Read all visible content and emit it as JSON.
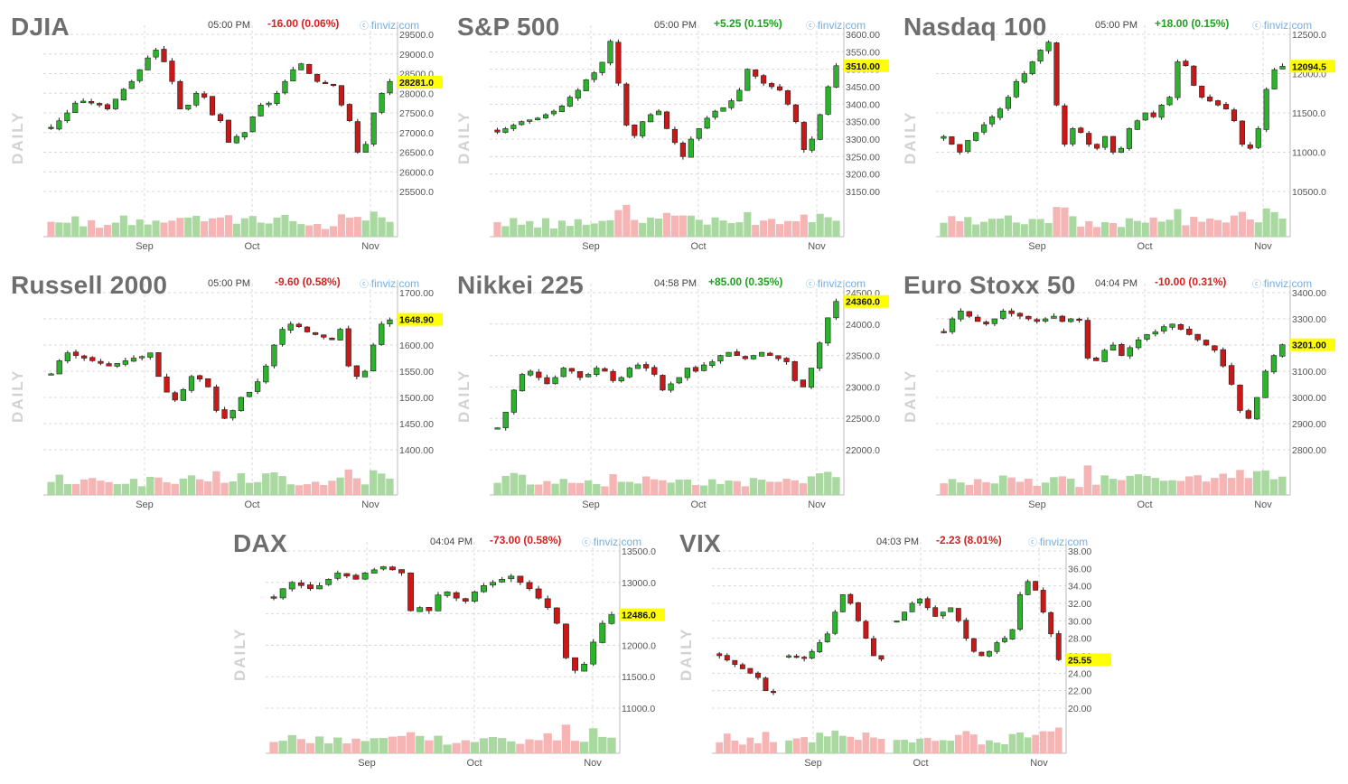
{
  "palette": {
    "up": "#2bb32b",
    "down": "#c81818",
    "up_vol": "#a9d9a0",
    "down_vol": "#f5b5b5",
    "last_price_bg": "#ffff00",
    "watermark": "#78aee0"
  },
  "charts": [
    {
      "title": "DJIA",
      "time": "05:00 PM",
      "change": "-16.00 (0.06%)",
      "direction": "down",
      "watermark": "finviz.com",
      "side_label": "DAILY",
      "last_label": "28281.0",
      "y_ticks": [
        "29500.0",
        "29000.0",
        "28500.0",
        "28000.0",
        "27500.0",
        "27000.0",
        "26500.0",
        "26000.0",
        "25500.0"
      ],
      "x_ticks": [
        "Sep",
        "Oct",
        "Nov"
      ]
    },
    {
      "title": "S&P 500",
      "time": "05:00 PM",
      "change": "+5.25 (0.15%)",
      "direction": "up",
      "watermark": "finviz.com",
      "side_label": "DAILY",
      "last_label": "3510.00",
      "y_ticks": [
        "3600.00",
        "3550.00",
        "3500.00",
        "3450.00",
        "3400.00",
        "3350.00",
        "3300.00",
        "3250.00",
        "3200.00",
        "3150.00"
      ],
      "x_ticks": [
        "Sep",
        "Oct",
        "Nov"
      ]
    },
    {
      "title": "Nasdaq 100",
      "time": "05:00 PM",
      "change": "+18.00 (0.15%)",
      "direction": "up",
      "watermark": "finviz.com",
      "side_label": "DAILY",
      "last_label": "12094.5",
      "y_ticks": [
        "12500.0",
        "12000.0",
        "11500.0",
        "11000.0",
        "10500.0"
      ],
      "x_ticks": [
        "Sep",
        "Oct",
        "Nov"
      ]
    },
    {
      "title": "Russell 2000",
      "time": "05:00 PM",
      "change": "-9.60 (0.58%)",
      "direction": "down",
      "watermark": "finviz.com",
      "side_label": "DAILY",
      "last_label": "1648.90",
      "y_ticks": [
        "1700.00",
        "1650.00",
        "1600.00",
        "1550.00",
        "1500.00",
        "1450.00",
        "1400.00"
      ],
      "x_ticks": [
        "Sep",
        "Oct",
        "Nov"
      ]
    },
    {
      "title": "Nikkei 225",
      "time": "04:58 PM",
      "change": "+85.00 (0.35%)",
      "direction": "up",
      "watermark": "finviz.com",
      "side_label": "DAILY",
      "last_label": "24360.0",
      "y_ticks": [
        "24500.0",
        "24000.0",
        "23500.0",
        "23000.0",
        "22500.0",
        "22000.0"
      ],
      "x_ticks": [
        "Sep",
        "Oct",
        "Nov"
      ]
    },
    {
      "title": "Euro Stoxx 50",
      "time": "04:04 PM",
      "change": "-10.00 (0.31%)",
      "direction": "down",
      "watermark": "finviz.com",
      "side_label": "DAILY",
      "last_label": "3201.00",
      "y_ticks": [
        "3400.00",
        "3300.00",
        "3200.00",
        "3100.00",
        "3000.00",
        "2900.00",
        "2800.00"
      ],
      "x_ticks": [
        "Sep",
        "Oct",
        "Nov"
      ]
    },
    {
      "title": "DAX",
      "time": "04:04 PM",
      "change": "-73.00 (0.58%)",
      "direction": "down",
      "watermark": "finviz.com",
      "side_label": "DAILY",
      "last_label": "12486.0",
      "y_ticks": [
        "13500.0",
        "13000.0",
        "12500.0",
        "12000.0",
        "11500.0",
        "11000.0"
      ],
      "x_ticks": [
        "Sep",
        "Oct",
        "Nov"
      ]
    },
    {
      "title": "VIX",
      "time": "04:03 PM",
      "change": "-2.23 (8.01%)",
      "direction": "down",
      "watermark": "finviz.com",
      "side_label": "DAILY",
      "last_label": "25.55",
      "y_ticks": [
        "38.00",
        "36.00",
        "34.00",
        "32.00",
        "30.00",
        "28.00",
        "26.00",
        "24.00",
        "22.00",
        "20.00"
      ],
      "x_ticks": [
        "Sep",
        "Oct",
        "Nov"
      ]
    }
  ],
  "chart_data": [
    {
      "type": "candlestick",
      "title": "DJIA",
      "ylim": [
        25500,
        29500
      ],
      "x_ticks": [
        "Sep",
        "Oct",
        "Nov"
      ],
      "last": 28281,
      "series": [
        {
          "name": "close",
          "values": [
            27100,
            27300,
            27500,
            27750,
            27800,
            27750,
            27700,
            27600,
            27850,
            28100,
            28300,
            28600,
            28900,
            29100,
            28800,
            28300,
            27600,
            27700,
            28000,
            27900,
            27450,
            27300,
            26750,
            26900,
            27000,
            27400,
            27700,
            27750,
            28000,
            28300,
            28600,
            28750,
            28500,
            28300,
            28250,
            28200,
            27700,
            27300,
            26500,
            26700,
            27500,
            28000,
            28300
          ]
        }
      ]
    },
    {
      "type": "candlestick",
      "title": "S&P 500",
      "ylim": [
        3150,
        3600
      ],
      "x_ticks": [
        "Sep",
        "Oct",
        "Nov"
      ],
      "last": 3510,
      "series": [
        {
          "name": "close",
          "values": [
            3320,
            3330,
            3340,
            3350,
            3355,
            3360,
            3370,
            3380,
            3395,
            3420,
            3440,
            3470,
            3490,
            3520,
            3580,
            3460,
            3340,
            3310,
            3350,
            3370,
            3380,
            3330,
            3290,
            3250,
            3300,
            3330,
            3360,
            3380,
            3390,
            3410,
            3440,
            3500,
            3480,
            3460,
            3450,
            3440,
            3400,
            3350,
            3270,
            3300,
            3370,
            3450,
            3510
          ]
        }
      ]
    },
    {
      "type": "candlestick",
      "title": "Nasdaq 100",
      "ylim": [
        10500,
        12500
      ],
      "x_ticks": [
        "Sep",
        "Oct",
        "Nov"
      ],
      "last": 12094.5,
      "series": [
        {
          "name": "close",
          "values": [
            11200,
            11100,
            11000,
            11150,
            11250,
            11350,
            11450,
            11550,
            11700,
            11900,
            12000,
            12150,
            12300,
            12400,
            11600,
            11100,
            11300,
            11250,
            11100,
            11050,
            11200,
            11000,
            11050,
            11300,
            11400,
            11500,
            11450,
            11600,
            11700,
            12150,
            12100,
            11850,
            11700,
            11650,
            11600,
            11550,
            11400,
            11100,
            11050,
            11300,
            11800,
            12050,
            12094
          ]
        }
      ]
    },
    {
      "type": "candlestick",
      "title": "Russell 2000",
      "ylim": [
        1400,
        1700
      ],
      "x_ticks": [
        "Sep",
        "Oct",
        "Nov"
      ],
      "last": 1648.9,
      "series": [
        {
          "name": "close",
          "values": [
            1545,
            1570,
            1585,
            1580,
            1575,
            1570,
            1565,
            1560,
            1565,
            1570,
            1575,
            1578,
            1585,
            1540,
            1510,
            1495,
            1515,
            1540,
            1535,
            1520,
            1475,
            1460,
            1475,
            1500,
            1510,
            1530,
            1560,
            1600,
            1630,
            1640,
            1635,
            1625,
            1620,
            1615,
            1610,
            1630,
            1560,
            1540,
            1550,
            1600,
            1640,
            1648
          ]
        }
      ]
    },
    {
      "type": "candlestick",
      "title": "Nikkei 225",
      "ylim": [
        22000,
        24500
      ],
      "x_ticks": [
        "Sep",
        "Oct",
        "Nov"
      ],
      "last": 24360,
      "series": [
        {
          "name": "close",
          "values": [
            22350,
            22600,
            22950,
            23200,
            23250,
            23150,
            23050,
            23150,
            23300,
            23250,
            23150,
            23200,
            23300,
            23250,
            23100,
            23150,
            23300,
            23350,
            23300,
            23200,
            22950,
            23050,
            23150,
            23300,
            23250,
            23350,
            23400,
            23500,
            23550,
            23500,
            23450,
            23500,
            23550,
            23500,
            23450,
            23400,
            23100,
            23000,
            23300,
            23700,
            24100,
            24360
          ]
        }
      ]
    },
    {
      "type": "candlestick",
      "title": "Euro Stoxx 50",
      "ylim": [
        2800,
        3400
      ],
      "x_ticks": [
        "Sep",
        "Oct",
        "Nov"
      ],
      "last": 3201,
      "series": [
        {
          "name": "close",
          "values": [
            3250,
            3300,
            3330,
            3310,
            3290,
            3280,
            3300,
            3330,
            3320,
            3310,
            3300,
            3290,
            3300,
            3310,
            3290,
            3300,
            3295,
            3150,
            3140,
            3180,
            3200,
            3160,
            3190,
            3220,
            3240,
            3250,
            3270,
            3280,
            3260,
            3240,
            3220,
            3200,
            3180,
            3120,
            3050,
            2950,
            2920,
            3000,
            3100,
            3160,
            3201
          ]
        }
      ]
    },
    {
      "type": "candlestick",
      "title": "DAX",
      "ylim": [
        11000,
        13500
      ],
      "x_ticks": [
        "Sep",
        "Oct",
        "Nov"
      ],
      "last": 12486,
      "series": [
        {
          "name": "close",
          "values": [
            12750,
            12900,
            13000,
            12950,
            12900,
            12950,
            13050,
            13150,
            13100,
            13050,
            13150,
            13200,
            13250,
            13200,
            13150,
            12550,
            12600,
            12550,
            12800,
            12850,
            12750,
            12700,
            12850,
            12950,
            13000,
            13050,
            13100,
            13000,
            12900,
            12750,
            12600,
            12350,
            11800,
            11600,
            11700,
            12050,
            12350,
            12486
          ]
        }
      ]
    },
    {
      "type": "candlestick",
      "title": "VIX",
      "ylim": [
        20,
        38
      ],
      "x_ticks": [
        "Sep",
        "Oct",
        "Nov"
      ],
      "last": 25.55,
      "series": [
        {
          "name": "close",
          "values": [
            26,
            25.5,
            25,
            24.5,
            24,
            23.5,
            22,
            21.8,
            null,
            26,
            25.8,
            25.7,
            26.5,
            27.5,
            28.5,
            31,
            33,
            32,
            30,
            28,
            26,
            25.6,
            null,
            30,
            31,
            32,
            32.5,
            31.5,
            30.5,
            31,
            31.5,
            30,
            28,
            26.5,
            26,
            26.5,
            27.5,
            28,
            29,
            33,
            34.5,
            33.5,
            31,
            28.5,
            25.55
          ]
        }
      ]
    }
  ]
}
